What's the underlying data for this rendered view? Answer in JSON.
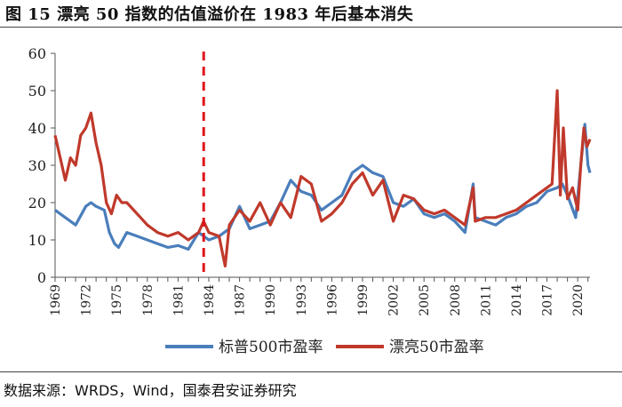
{
  "title": "图 15 漂亮 50 指数的估值溢价在 1983 年后基本消失",
  "source": "数据来源：WRDS，Wind，国泰君安证券研究",
  "chart_data": {
    "type": "line",
    "xlim": [
      1969,
      2021.2
    ],
    "ylim": [
      0,
      60
    ],
    "yticks": [
      0,
      10,
      20,
      30,
      40,
      50,
      60
    ],
    "xticks": [
      "1969",
      "1972",
      "1975",
      "1978",
      "1981",
      "1984",
      "1987",
      "1990",
      "1993",
      "1996",
      "1999",
      "2002",
      "2005",
      "2008",
      "2011",
      "2014",
      "2017",
      "2020"
    ],
    "vline_x": 1983.5,
    "legend_position": "bottom",
    "series": [
      {
        "name": "标普500市盈率",
        "color": "#4a7ebb",
        "x": [
          1969,
          1970,
          1971,
          1972,
          1972.5,
          1973,
          1973.8,
          1974.3,
          1974.8,
          1975.2,
          1976,
          1977,
          1978,
          1979,
          1980,
          1981,
          1982,
          1983,
          1984,
          1985,
          1986,
          1987,
          1988,
          1989,
          1990,
          1991,
          1992,
          1993,
          1994,
          1995,
          1996,
          1997,
          1998,
          1999,
          2000,
          2001,
          2002,
          2003,
          2004,
          2005,
          2006,
          2007,
          2008,
          2009,
          2009.8,
          2010,
          2011,
          2012,
          2013,
          2014,
          2015,
          2016,
          2017,
          2018,
          2018.5,
          2019,
          2019.8,
          2020.3,
          2020.7,
          2021,
          2021.2
        ],
        "values": [
          18,
          16,
          14,
          19,
          20,
          19,
          18,
          12,
          9,
          8,
          12,
          11,
          10,
          9,
          8,
          8.5,
          7.5,
          12,
          10,
          11,
          13,
          19,
          13,
          14,
          15,
          20,
          26,
          23,
          22,
          18,
          20,
          22,
          28,
          30,
          28,
          27,
          20,
          19,
          21,
          17,
          16,
          17,
          15,
          12,
          25,
          16,
          15,
          14,
          16,
          17,
          19,
          20,
          23,
          24,
          25,
          22,
          16,
          30,
          41,
          30,
          28
        ]
      },
      {
        "name": "漂亮50市盈率",
        "color": "#c0392b",
        "x": [
          1969,
          1969.5,
          1970,
          1970.5,
          1971,
          1971.5,
          1972,
          1972.5,
          1973,
          1973.5,
          1974,
          1974.5,
          1975,
          1975.5,
          1976,
          1977,
          1978,
          1979,
          1980,
          1981,
          1982,
          1983,
          1983.5,
          1984,
          1985,
          1985.6,
          1986,
          1987,
          1988,
          1989,
          1990,
          1991,
          1992,
          1993,
          1994,
          1995,
          1996,
          1997,
          1998,
          1999,
          2000,
          2001,
          2002,
          2003,
          2004,
          2005,
          2006,
          2007,
          2008,
          2009,
          2009.8,
          2010,
          2011,
          2012,
          2013,
          2014,
          2015,
          2016,
          2017,
          2017.5,
          2018,
          2018.3,
          2018.6,
          2019,
          2019.5,
          2020,
          2020.3,
          2020.6,
          2020.9,
          2021.2
        ],
        "values": [
          38,
          32,
          26,
          32,
          30,
          38,
          40,
          44,
          36,
          30,
          20,
          17,
          22,
          20,
          20,
          17,
          14,
          12,
          11,
          12,
          10,
          12,
          15,
          12,
          11,
          3,
          14,
          18,
          15,
          20,
          14,
          20,
          16,
          27,
          25,
          15,
          17,
          20,
          25,
          28,
          22,
          26,
          15,
          22,
          21,
          18,
          17,
          18,
          16,
          14,
          24,
          15,
          16,
          16,
          17,
          18,
          20,
          22,
          24,
          25,
          50,
          22,
          40,
          21,
          24,
          18,
          30,
          40,
          35,
          37
        ]
      }
    ]
  }
}
